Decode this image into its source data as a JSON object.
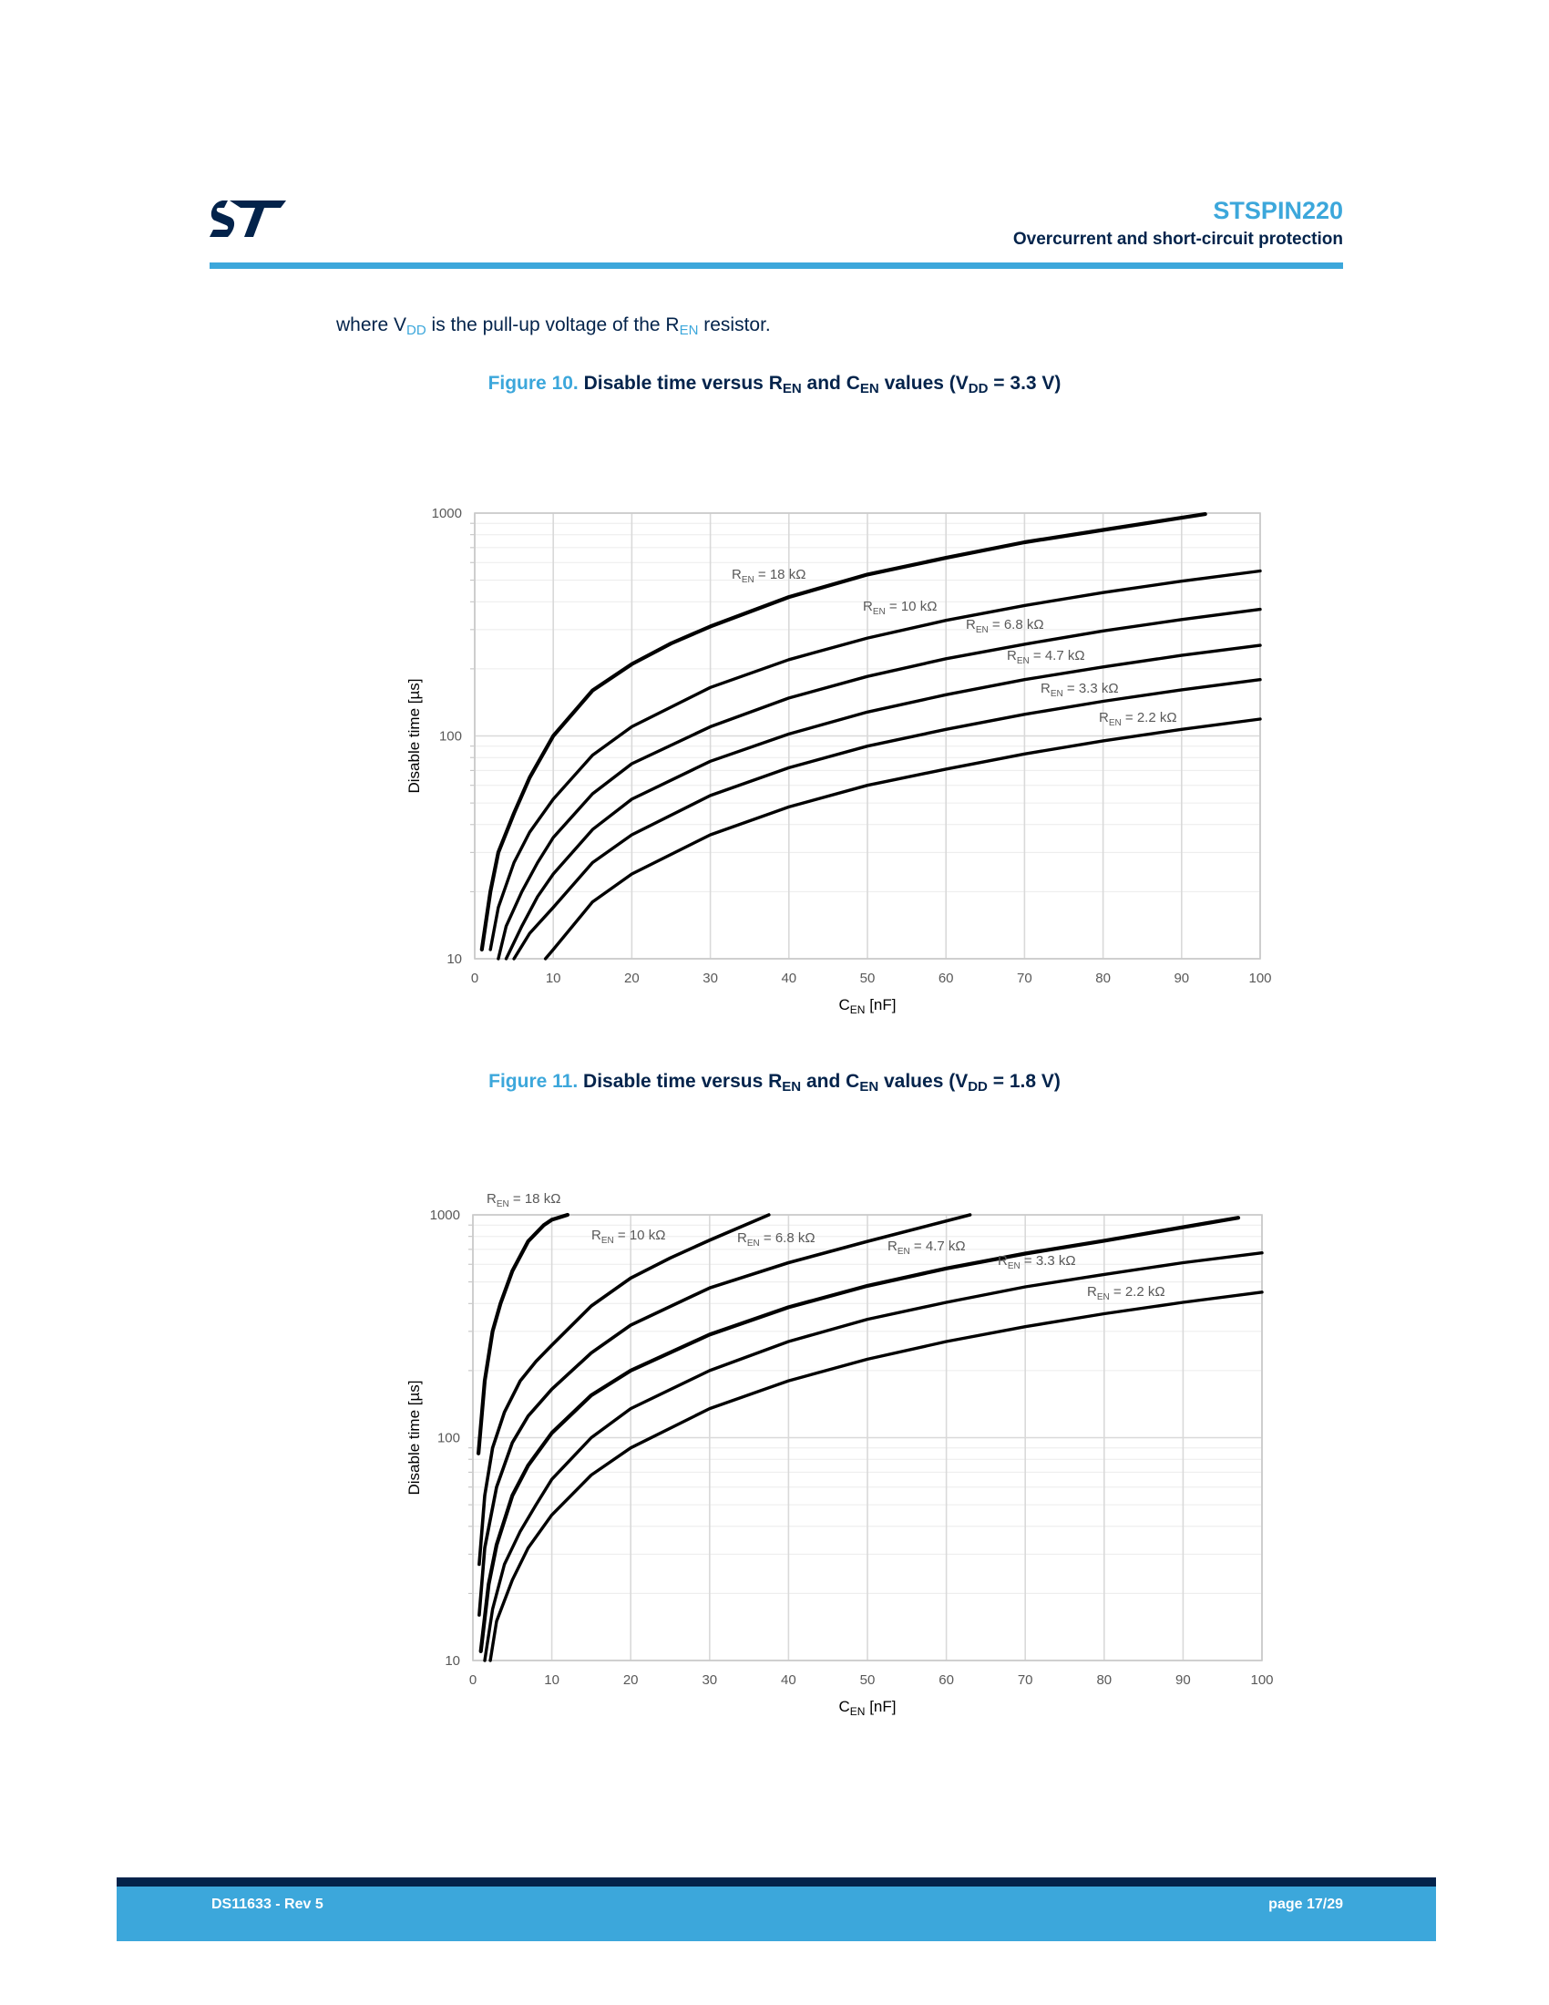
{
  "header": {
    "logo": "st-logo",
    "title": "STSPIN220",
    "subtitle": "Overcurrent and short-circuit protection"
  },
  "intro": {
    "part1": "where V",
    "sub1": "DD",
    "part2": " is the pull-up voltage of the R",
    "sub2": "EN",
    "part3": " resistor."
  },
  "figures": [
    {
      "number": "Figure 10.",
      "t1": " Disable time versus R",
      "s1": "EN",
      "t2": " and C",
      "s2": "EN",
      "t3": " values (V",
      "s3": "DD",
      "t4": " = 3.3 V)"
    },
    {
      "number": "Figure 11.",
      "t1": " Disable time versus R",
      "s1": "EN",
      "t2": " and C",
      "s2": "EN",
      "t3": " values (V",
      "s3": "DD",
      "t4": " = 1.8 V)"
    }
  ],
  "chart_data": [
    {
      "type": "line",
      "xlabel": "C",
      "xlabel_sub": "EN",
      "xlabel_unit": " [nF]",
      "ylabel": "Disable time [µs]",
      "x_ticks": [
        "0",
        "10",
        "20",
        "30",
        "40",
        "50",
        "60",
        "70",
        "80",
        "90",
        "100"
      ],
      "y_ticks": [
        "10",
        "100",
        "1000"
      ],
      "xlim": [
        0,
        100
      ],
      "ylim": [
        10,
        1000
      ],
      "y_scale": "log",
      "grid": true,
      "series": [
        {
          "label": "18 kΩ",
          "x": [
            0.9,
            2,
            3,
            5,
            7,
            10,
            15,
            20,
            25,
            30,
            40,
            50,
            60,
            70,
            80,
            93
          ],
          "y": [
            11,
            20,
            30,
            45,
            65,
            100,
            160,
            210,
            260,
            310,
            420,
            530,
            630,
            740,
            840,
            990
          ]
        },
        {
          "label": "10 kΩ",
          "x": [
            2,
            3,
            5,
            7,
            10,
            15,
            20,
            30,
            40,
            50,
            60,
            70,
            80,
            90,
            100
          ],
          "y": [
            11,
            17,
            27,
            37,
            52,
            82,
            110,
            165,
            220,
            275,
            330,
            385,
            440,
            495,
            550
          ]
        },
        {
          "label": "6.8 kΩ",
          "x": [
            3,
            4,
            6,
            8,
            10,
            15,
            20,
            30,
            40,
            50,
            60,
            70,
            80,
            90,
            100
          ],
          "y": [
            10,
            14,
            20,
            27,
            35,
            55,
            75,
            110,
            148,
            185,
            222,
            258,
            296,
            333,
            370
          ]
        },
        {
          "label": "4.7 kΩ",
          "x": [
            4,
            6,
            8,
            10,
            15,
            20,
            30,
            40,
            50,
            60,
            70,
            80,
            90,
            100
          ],
          "y": [
            10,
            14,
            19,
            24,
            38,
            52,
            77,
            102,
            128,
            153,
            179,
            204,
            230,
            255
          ]
        },
        {
          "label": "3.3 kΩ",
          "x": [
            5,
            7,
            10,
            15,
            20,
            30,
            40,
            50,
            60,
            70,
            80,
            90,
            100
          ],
          "y": [
            10,
            13,
            17,
            27,
            36,
            54,
            72,
            90,
            107,
            125,
            143,
            161,
            179
          ]
        },
        {
          "label": "2.2 kΩ",
          "x": [
            9,
            10,
            15,
            20,
            30,
            40,
            50,
            60,
            70,
            80,
            90,
            100
          ],
          "y": [
            10,
            11,
            18,
            24,
            36,
            48,
            60,
            71,
            83,
            95,
            107,
            119
          ]
        }
      ],
      "annotations": [
        {
          "prefix": "R",
          "sub": "EN",
          "text": " = 18 kΩ"
        },
        {
          "prefix": "R",
          "sub": "EN",
          "text": " = 10 kΩ"
        },
        {
          "prefix": "R",
          "sub": "EN",
          "text": " = 6.8 kΩ"
        },
        {
          "prefix": "R",
          "sub": "EN",
          "text": " = 4.7 kΩ"
        },
        {
          "prefix": "R",
          "sub": "EN",
          "text": " = 3.3 kΩ"
        },
        {
          "prefix": "R",
          "sub": "EN",
          "text": " = 2.2 kΩ"
        }
      ]
    },
    {
      "type": "line",
      "xlabel": "C",
      "xlabel_sub": "EN",
      "xlabel_unit": " [nF]",
      "ylabel": "Disable time [µs]",
      "x_ticks": [
        "0",
        "10",
        "20",
        "30",
        "40",
        "50",
        "60",
        "70",
        "80",
        "90",
        "100"
      ],
      "y_ticks": [
        "10",
        "100",
        "1000"
      ],
      "xlim": [
        0,
        100
      ],
      "ylim": [
        10,
        1000
      ],
      "y_scale": "log",
      "grid": true,
      "series": [
        {
          "label": "18 kΩ",
          "x": [
            0.7,
            1.5,
            2.5,
            3.5,
            5,
            7,
            9,
            10,
            12
          ],
          "y": [
            85,
            180,
            300,
            400,
            560,
            760,
            900,
            950,
            1000
          ]
        },
        {
          "label": "10 kΩ",
          "x": [
            0.8,
            1.5,
            2.5,
            4,
            6,
            8,
            10,
            15,
            20,
            25,
            30,
            37.5
          ],
          "y": [
            27,
            55,
            90,
            130,
            180,
            220,
            260,
            390,
            520,
            640,
            770,
            1000
          ]
        },
        {
          "label": "6.8 kΩ",
          "x": [
            0.8,
            1.5,
            3,
            5,
            7,
            10,
            15,
            20,
            30,
            40,
            50,
            63
          ],
          "y": [
            16,
            32,
            60,
            95,
            125,
            165,
            240,
            320,
            470,
            610,
            760,
            1000
          ]
        },
        {
          "label": "4.7 kΩ",
          "x": [
            1,
            2,
            3,
            5,
            7,
            10,
            15,
            20,
            30,
            40,
            50,
            60,
            70,
            80,
            97
          ],
          "y": [
            11,
            22,
            33,
            55,
            75,
            105,
            155,
            200,
            290,
            385,
            480,
            575,
            670,
            765,
            970
          ]
        },
        {
          "label": "3.3 kΩ",
          "x": [
            1.5,
            2.5,
            4,
            6,
            8,
            10,
            15,
            20,
            30,
            40,
            50,
            60,
            70,
            80,
            90,
            100
          ],
          "y": [
            10,
            17,
            27,
            38,
            50,
            65,
            100,
            135,
            200,
            270,
            340,
            405,
            475,
            540,
            610,
            675
          ]
        },
        {
          "label": "2.2 kΩ",
          "x": [
            2.2,
            3,
            5,
            7,
            10,
            15,
            20,
            30,
            40,
            50,
            60,
            70,
            80,
            90,
            100
          ],
          "y": [
            10,
            15,
            23,
            32,
            45,
            68,
            90,
            135,
            180,
            225,
            270,
            315,
            360,
            405,
            450
          ]
        }
      ],
      "annotations": [
        {
          "prefix": "R",
          "sub": "EN",
          "text": " = 18 kΩ"
        },
        {
          "prefix": "R",
          "sub": "EN",
          "text": " = 10 kΩ"
        },
        {
          "prefix": "R",
          "sub": "EN",
          "text": " = 6.8 kΩ"
        },
        {
          "prefix": "R",
          "sub": "EN",
          "text": " = 4.7 kΩ"
        },
        {
          "prefix": "R",
          "sub": "EN",
          "text": " = 3.3 kΩ"
        },
        {
          "prefix": "R",
          "sub": "EN",
          "text": " = 2.2 kΩ"
        }
      ]
    }
  ],
  "footer": {
    "left": "DS11633 - Rev 5",
    "right": "page 17/29"
  },
  "colors": {
    "accent": "#3ca7db",
    "navy": "#03234b",
    "curve": "#000000",
    "grid": "#d9d9d9"
  }
}
